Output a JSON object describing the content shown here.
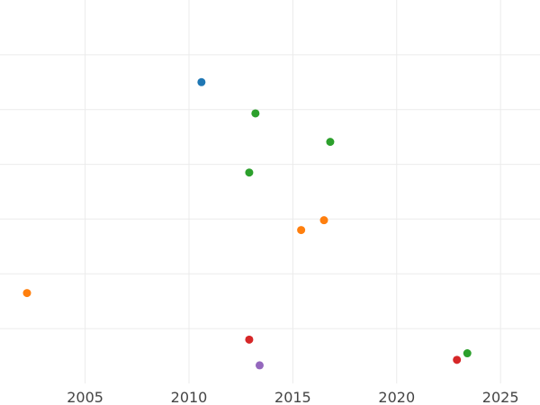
{
  "chart_data": {
    "type": "scatter",
    "title": "",
    "xlabel": "",
    "ylabel": "",
    "grid": true,
    "legend": "none",
    "xlim": [
      2000.9,
      2026.9
    ],
    "ylim": [
      0,
      7
    ],
    "x_ticks": [
      2005,
      2010,
      2015,
      2020,
      2025
    ],
    "x_tick_labels": [
      "2005",
      "2010",
      "2015",
      "2020",
      "2025"
    ],
    "y_grid": [
      1,
      2,
      3,
      4,
      5,
      6
    ],
    "series": [
      {
        "color": "#1f77b4",
        "x": [
          2010.6
        ],
        "y": [
          5.5
        ]
      },
      {
        "color": "#ff7f0e",
        "x": [
          2002.2,
          2015.4,
          2016.5
        ],
        "y": [
          1.65,
          2.8,
          2.98
        ]
      },
      {
        "color": "#2ca02c",
        "x": [
          2013.2,
          2016.8,
          2012.9,
          2023.4
        ],
        "y": [
          4.93,
          4.41,
          3.85,
          0.55
        ]
      },
      {
        "color": "#d62728",
        "x": [
          2012.9,
          2022.9
        ],
        "y": [
          0.8,
          0.43
        ]
      },
      {
        "color": "#9467bd",
        "x": [
          2013.4
        ],
        "y": [
          0.33
        ]
      }
    ]
  }
}
